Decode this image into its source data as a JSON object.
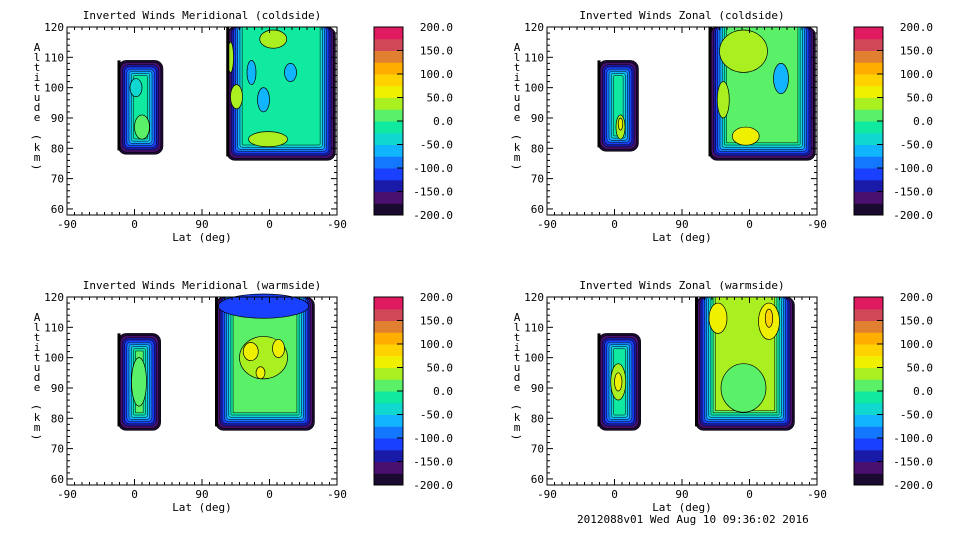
{
  "footer": "2012088v01 Wed Aug 10 09:36:02 2016",
  "chart_data": [
    {
      "type": "heatmap",
      "title": "Inverted Winds Meridional (coldside)",
      "xlabel": "Lat (deg)",
      "ylabel": "Altitude (km)",
      "xticks": [
        "-90",
        "0",
        "90",
        "0",
        "-90"
      ],
      "yticks": [
        "60",
        "70",
        "80",
        "90",
        "100",
        "110",
        "120"
      ],
      "ylim": [
        58,
        120
      ],
      "colorbar": {
        "ticks": [
          "200.0",
          "150.0",
          "100.0",
          "50.0",
          "0.0",
          "-50.0",
          "-100.0",
          "-150.0",
          "-200.0"
        ],
        "range": [
          -200,
          200
        ],
        "step": 25
      },
      "regions": [
        {
          "pos": [
            68,
            128
          ],
          "alt": [
            78,
            109
          ],
          "core": -25,
          "features": [
            {
              "pos": 100,
              "alt": 87,
              "rp": 10,
              "ra": 4,
              "v": 0
            },
            {
              "pos": 92,
              "alt": 100,
              "rp": 8,
              "ra": 3,
              "v": -50
            }
          ]
        },
        {
          "pos": [
            213,
            358
          ],
          "alt": [
            76,
            120
          ],
          "core": -25,
          "features": [
            {
              "pos": 226,
              "alt": 97,
              "rp": 8,
              "ra": 4,
              "v": 25
            },
            {
              "pos": 275,
              "alt": 116,
              "rp": 18,
              "ra": 3,
              "v": 25
            },
            {
              "pos": 268,
              "alt": 83,
              "rp": 26,
              "ra": 2.5,
              "v": 25
            },
            {
              "pos": 246,
              "alt": 105,
              "rp": 6,
              "ra": 4,
              "v": -75
            },
            {
              "pos": 262,
              "alt": 96,
              "rp": 8,
              "ra": 4,
              "v": -75
            },
            {
              "pos": 298,
              "alt": 105,
              "rp": 8,
              "ra": 3,
              "v": -75
            },
            {
              "pos": 218,
              "alt": 110,
              "rp": 4,
              "ra": 5,
              "v": 25
            }
          ]
        }
      ]
    },
    {
      "type": "heatmap",
      "title": "Inverted Winds Zonal (coldside)",
      "xlabel": "Lat (deg)",
      "ylabel": "Altitude (km)",
      "xticks": [
        "-90",
        "0",
        "90",
        "0",
        "-90"
      ],
      "yticks": [
        "60",
        "70",
        "80",
        "90",
        "100",
        "110",
        "120"
      ],
      "ylim": [
        58,
        120
      ],
      "colorbar": {
        "ticks": [
          "200.0",
          "150.0",
          "100.0",
          "50.0",
          "0.0",
          "-50.0",
          "-100.0",
          "-150.0",
          "-200.0"
        ],
        "range": [
          -200,
          200
        ],
        "step": 25
      },
      "regions": [
        {
          "pos": [
            68,
            122
          ],
          "alt": [
            79,
            109
          ],
          "core": -25,
          "features": [
            {
              "pos": 98,
              "alt": 87,
              "rp": 6,
              "ra": 4,
              "v": 25
            },
            {
              "pos": 98,
              "alt": 88,
              "rp": 3,
              "ra": 2,
              "v": 50
            }
          ]
        },
        {
          "pos": [
            216,
            358
          ],
          "alt": [
            76,
            120
          ],
          "core": 0,
          "features": [
            {
              "pos": 262,
              "alt": 112,
              "rp": 32,
              "ra": 7,
              "v": 25
            },
            {
              "pos": 265,
              "alt": 84,
              "rp": 18,
              "ra": 3,
              "v": 50
            },
            {
              "pos": 312,
              "alt": 103,
              "rp": 10,
              "ra": 5,
              "v": -75
            },
            {
              "pos": 235,
              "alt": 96,
              "rp": 8,
              "ra": 6,
              "v": 25
            }
          ]
        }
      ]
    },
    {
      "type": "heatmap",
      "title": "Inverted Winds Meridional (warmside)",
      "xlabel": "Lat (deg)",
      "ylabel": "Altitude (km)",
      "xticks": [
        "-90",
        "0",
        "90",
        "0",
        "-90"
      ],
      "yticks": [
        "60",
        "70",
        "80",
        "90",
        "100",
        "110",
        "120"
      ],
      "ylim": [
        58,
        120
      ],
      "colorbar": {
        "ticks": [
          "200.0",
          "150.0",
          "100.0",
          "50.0",
          "0.0",
          "-50.0",
          "-100.0",
          "-150.0",
          "-200.0"
        ],
        "range": [
          -200,
          200
        ],
        "step": 25
      },
      "regions": [
        {
          "pos": [
            68,
            125
          ],
          "alt": [
            76,
            108
          ],
          "core": 0,
          "features": [
            {
              "pos": 96,
              "alt": 92,
              "rp": 10,
              "ra": 8,
              "v": 0
            }
          ]
        },
        {
          "pos": [
            198,
            330
          ],
          "alt": [
            76,
            120
          ],
          "core": 0,
          "features": [
            {
              "pos": 262,
              "alt": 117,
              "rp": 60,
              "ra": 4,
              "v": -125
            },
            {
              "pos": 262,
              "alt": 100,
              "rp": 32,
              "ra": 7,
              "v": 25
            },
            {
              "pos": 245,
              "alt": 102,
              "rp": 10,
              "ra": 3,
              "v": 50
            },
            {
              "pos": 282,
              "alt": 103,
              "rp": 8,
              "ra": 3,
              "v": 50
            },
            {
              "pos": 258,
              "alt": 95,
              "rp": 6,
              "ra": 2,
              "v": 50
            }
          ]
        }
      ]
    },
    {
      "type": "heatmap",
      "title": "Inverted Winds Zonal (warmside)",
      "xlabel": "Lat (deg)",
      "ylabel": "Altitude (km)",
      "xticks": [
        "-90",
        "0",
        "90",
        "0",
        "-90"
      ],
      "yticks": [
        "60",
        "70",
        "80",
        "90",
        "100",
        "110",
        "120"
      ],
      "ylim": [
        58,
        120
      ],
      "colorbar": {
        "ticks": [
          "200.0",
          "150.0",
          "100.0",
          "50.0",
          "0.0",
          "-50.0",
          "-100.0",
          "-150.0",
          "-200.0"
        ],
        "range": [
          -200,
          200
        ],
        "step": 25
      },
      "regions": [
        {
          "pos": [
            68,
            125
          ],
          "alt": [
            76,
            108
          ],
          "core": -25,
          "features": [
            {
              "pos": 95,
              "alt": 92,
              "rp": 10,
              "ra": 6,
              "v": 25
            },
            {
              "pos": 95,
              "alt": 92,
              "rp": 5,
              "ra": 3,
              "v": 50
            }
          ]
        },
        {
          "pos": [
            198,
            330
          ],
          "alt": [
            76,
            120
          ],
          "core": 25,
          "features": [
            {
              "pos": 228,
              "alt": 113,
              "rp": 12,
              "ra": 5,
              "v": 50
            },
            {
              "pos": 296,
              "alt": 112,
              "rp": 14,
              "ra": 6,
              "v": 50
            },
            {
              "pos": 262,
              "alt": 90,
              "rp": 30,
              "ra": 8,
              "v": 0
            },
            {
              "pos": 296,
              "alt": 113,
              "rp": 5,
              "ra": 3,
              "v": 75
            }
          ]
        }
      ]
    }
  ]
}
